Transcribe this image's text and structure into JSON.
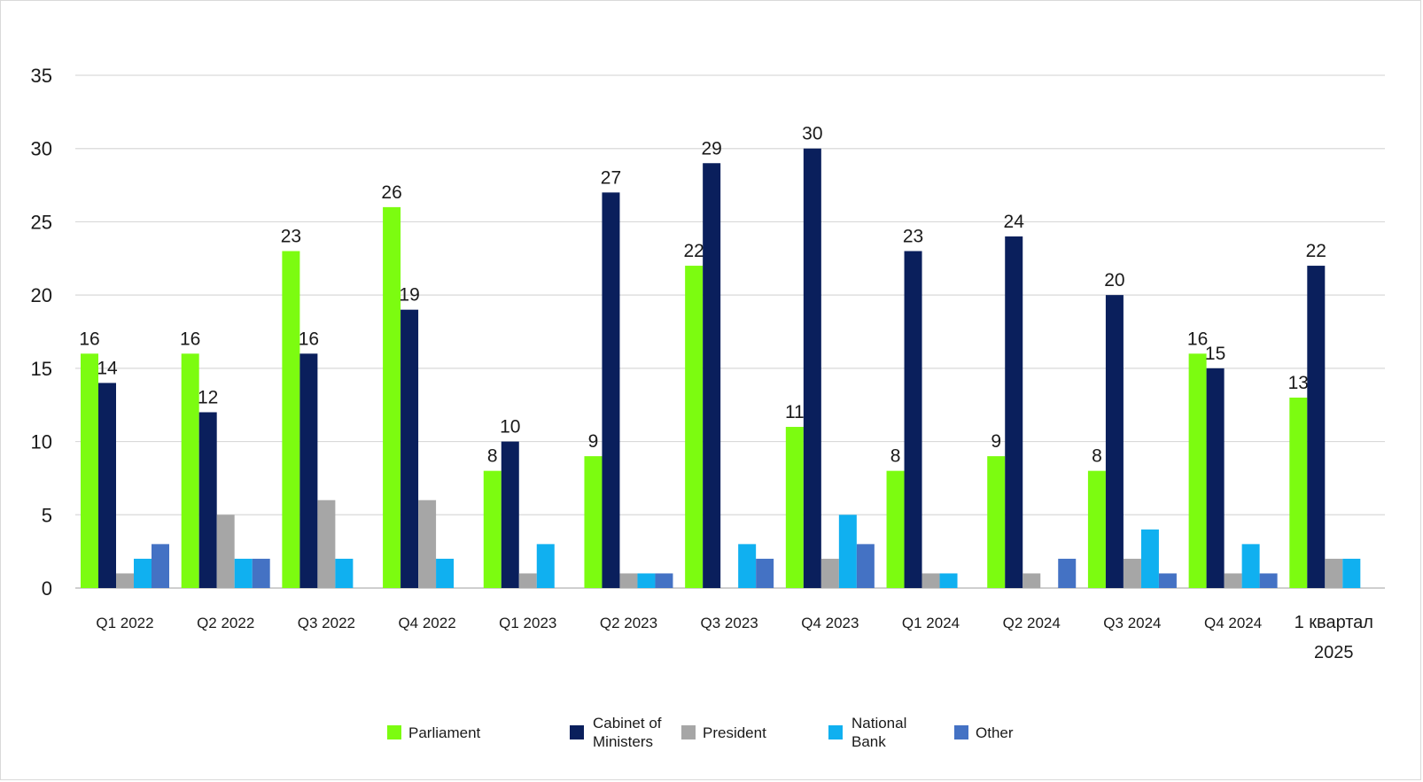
{
  "chart_data": {
    "type": "bar",
    "categories": [
      "Q1 2022",
      "Q2 2022",
      "Q3 2022",
      "Q4 2022",
      "Q1 2023",
      "Q2 2023",
      "Q3 2023",
      "Q4 2023",
      "Q1 2024",
      "Q2 2024",
      "Q3 2024",
      "Q4 2024",
      "1 квартал 2025"
    ],
    "series": [
      {
        "name": "Parliament",
        "color": "#7CFC10",
        "values": [
          16,
          16,
          23,
          26,
          8,
          9,
          22,
          11,
          8,
          9,
          8,
          16,
          13
        ]
      },
      {
        "name": "Cabinet of Ministers",
        "color": "#0A1F5C",
        "values": [
          14,
          12,
          16,
          19,
          10,
          27,
          29,
          30,
          23,
          24,
          20,
          15,
          22
        ]
      },
      {
        "name": "President",
        "color": "#A6A6A6",
        "values": [
          1,
          5,
          6,
          6,
          1,
          1,
          0,
          2,
          1,
          1,
          2,
          1,
          2
        ]
      },
      {
        "name": "National Bank",
        "color": "#10B0F0",
        "values": [
          2,
          2,
          2,
          2,
          3,
          1,
          3,
          5,
          1,
          0,
          4,
          3,
          2
        ]
      },
      {
        "name": "Other",
        "color": "#4472C4",
        "values": [
          3,
          2,
          0,
          0,
          0,
          1,
          2,
          3,
          0,
          2,
          1,
          1,
          0
        ]
      }
    ],
    "data_labels_series": [
      "Parliament",
      "Cabinet of Ministers"
    ],
    "ylim": [
      0,
      35
    ],
    "yticks": [
      0,
      5,
      10,
      15,
      20,
      25,
      30,
      35
    ],
    "grid": true,
    "legend_position": "bottom",
    "title": "",
    "xlabel": "",
    "ylabel": ""
  }
}
